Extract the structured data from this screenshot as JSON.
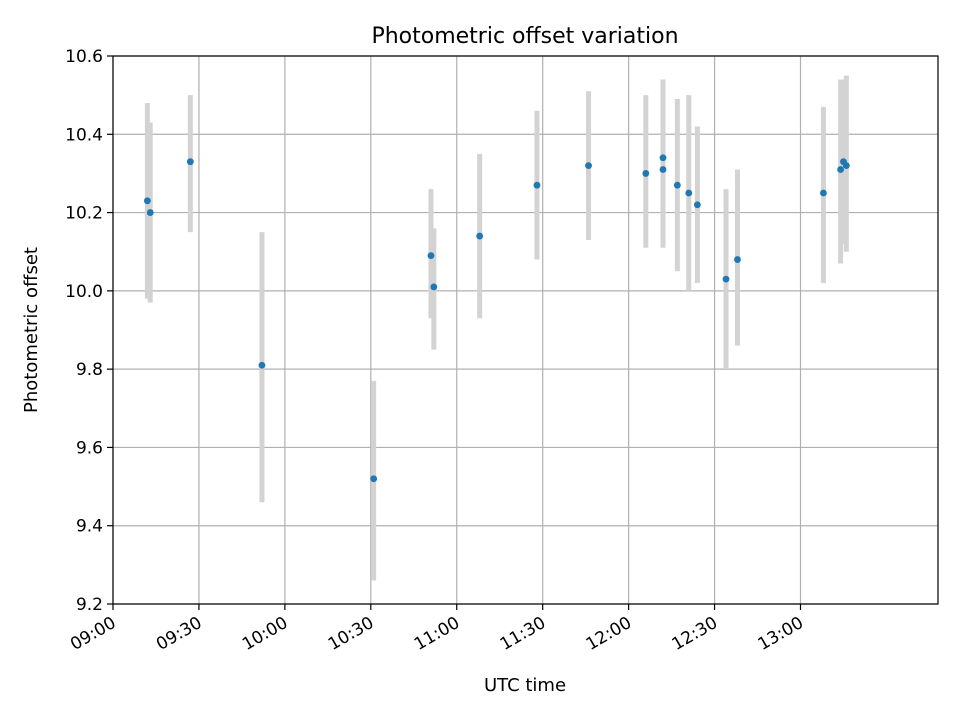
{
  "chart_data": {
    "type": "scatter",
    "title": "Photometric offset variation",
    "xlabel": "UTC time",
    "ylabel": "Photometric offset",
    "x_is_time": true,
    "xlim": [
      "09:00",
      "13:48"
    ],
    "ylim": [
      9.2,
      10.6
    ],
    "x_ticks": [
      "09:00",
      "09:30",
      "10:00",
      "10:30",
      "11:00",
      "11:30",
      "12:00",
      "12:30",
      "13:00"
    ],
    "y_ticks": [
      "9.2",
      "9.4",
      "9.6",
      "9.8",
      "10.0",
      "10.2",
      "10.4",
      "10.6"
    ],
    "grid": true,
    "colors": {
      "points": "#1f77b4",
      "errorbars": "#d3d3d3",
      "grid": "#b0b0b0"
    },
    "series": [
      {
        "points": [
          {
            "t": "09:12",
            "y": 10.23,
            "lo": 9.98,
            "hi": 10.48
          },
          {
            "t": "09:13",
            "y": 10.2,
            "lo": 9.97,
            "hi": 10.43
          },
          {
            "t": "09:27",
            "y": 10.33,
            "lo": 10.15,
            "hi": 10.5
          },
          {
            "t": "09:52",
            "y": 9.81,
            "lo": 9.46,
            "hi": 10.15
          },
          {
            "t": "10:31",
            "y": 9.52,
            "lo": 9.26,
            "hi": 9.77
          },
          {
            "t": "10:51",
            "y": 10.09,
            "lo": 9.93,
            "hi": 10.26
          },
          {
            "t": "10:52",
            "y": 10.01,
            "lo": 9.85,
            "hi": 10.16
          },
          {
            "t": "11:08",
            "y": 10.14,
            "lo": 9.93,
            "hi": 10.35
          },
          {
            "t": "11:28",
            "y": 10.27,
            "lo": 10.08,
            "hi": 10.46
          },
          {
            "t": "11:46",
            "y": 10.32,
            "lo": 10.13,
            "hi": 10.51
          },
          {
            "t": "12:06",
            "y": 10.3,
            "lo": 10.11,
            "hi": 10.5
          },
          {
            "t": "12:12",
            "y": 10.31,
            "lo": 10.11,
            "hi": 10.51
          },
          {
            "t": "12:12",
            "y": 10.34,
            "lo": 10.15,
            "hi": 10.54
          },
          {
            "t": "12:17",
            "y": 10.27,
            "lo": 10.05,
            "hi": 10.49
          },
          {
            "t": "12:21",
            "y": 10.25,
            "lo": 10.0,
            "hi": 10.5
          },
          {
            "t": "12:24",
            "y": 10.22,
            "lo": 10.02,
            "hi": 10.42
          },
          {
            "t": "12:34",
            "y": 10.03,
            "lo": 9.8,
            "hi": 10.26
          },
          {
            "t": "12:38",
            "y": 10.08,
            "lo": 9.86,
            "hi": 10.31
          },
          {
            "t": "13:08",
            "y": 10.25,
            "lo": 10.02,
            "hi": 10.47
          },
          {
            "t": "13:14",
            "y": 10.31,
            "lo": 10.07,
            "hi": 10.54
          },
          {
            "t": "13:15",
            "y": 10.33,
            "lo": 10.12,
            "hi": 10.54
          },
          {
            "t": "13:16",
            "y": 10.32,
            "lo": 10.1,
            "hi": 10.55
          }
        ]
      }
    ]
  }
}
